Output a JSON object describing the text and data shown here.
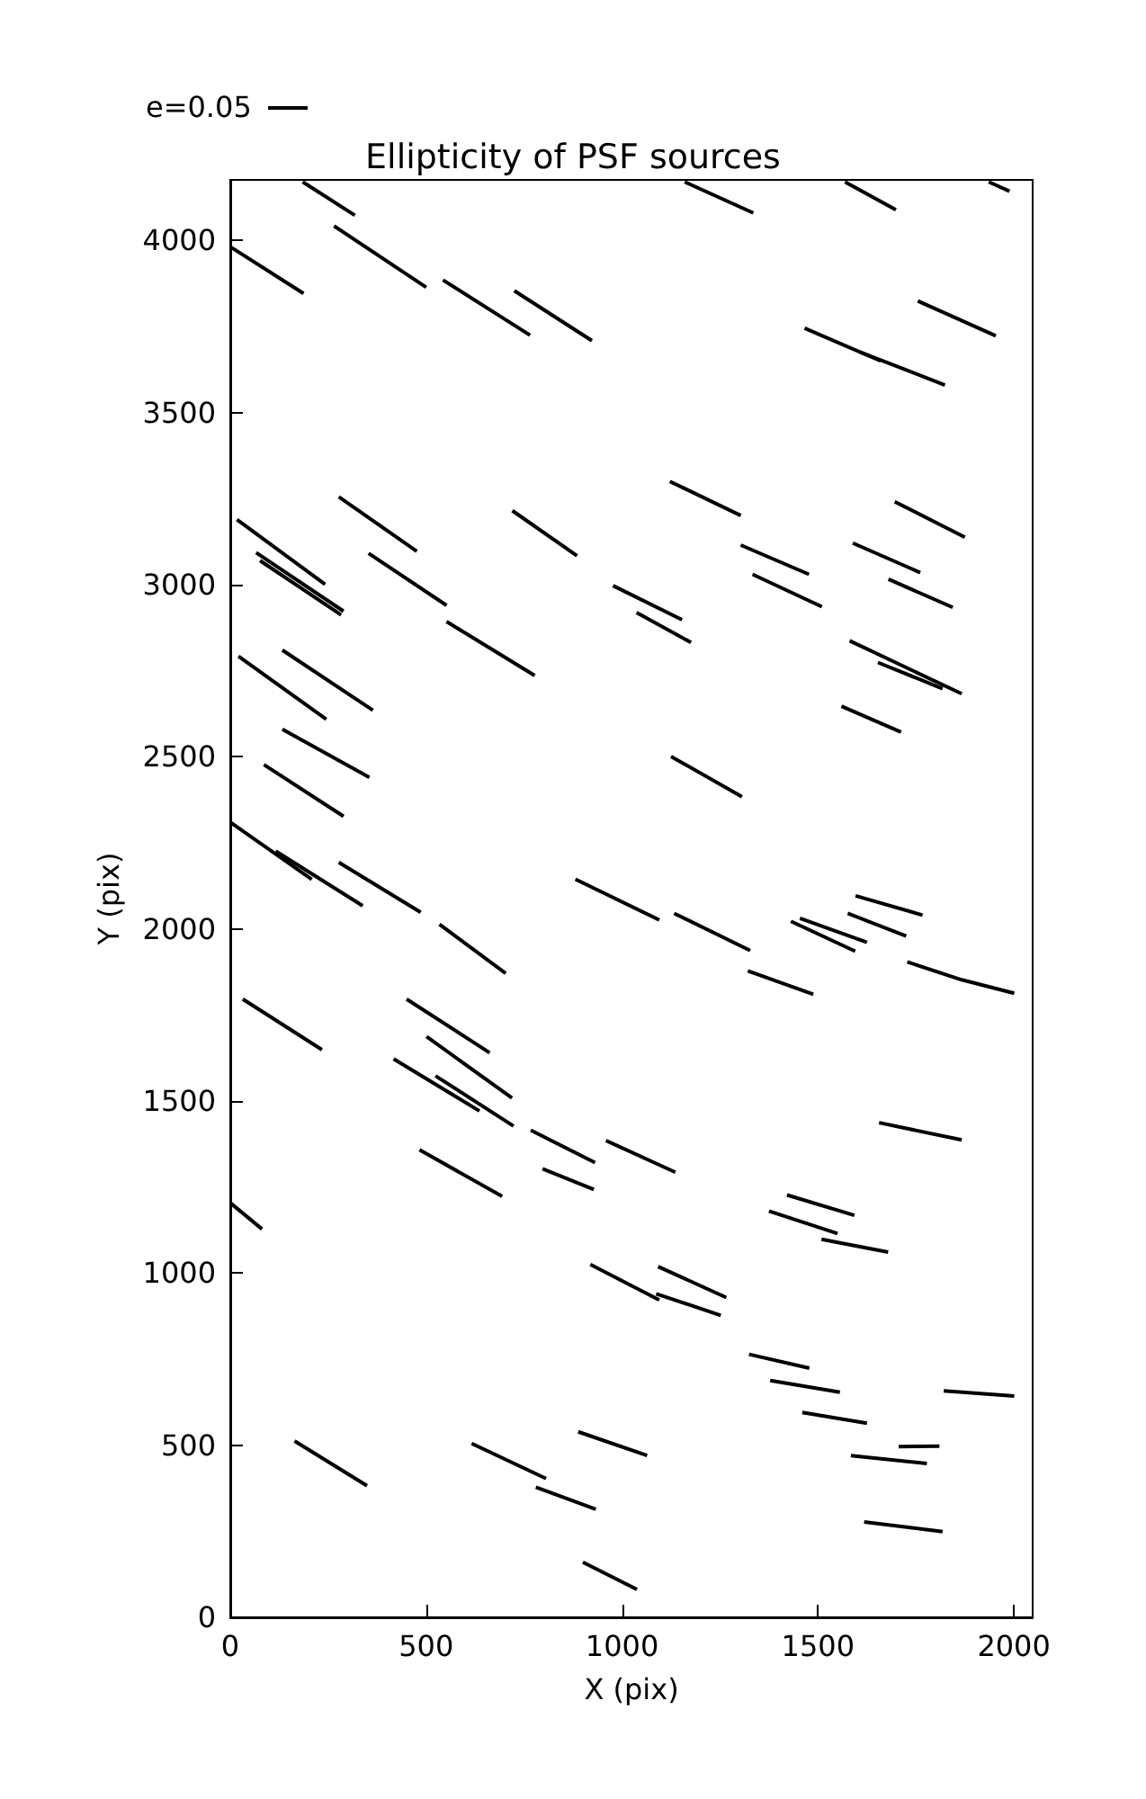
{
  "chart_data": {
    "type": "line",
    "title": "Ellipticity of PSF sources",
    "xlabel": "X (pix)",
    "ylabel": "Y (pix)",
    "annotations": [
      "e=0.05"
    ],
    "xlim": [
      0,
      2048
    ],
    "ylim": [
      0,
      4176
    ],
    "xticks": [
      0,
      500,
      1000,
      1500,
      2000
    ],
    "yticks": [
      0,
      500,
      1000,
      1500,
      2000,
      2500,
      3000,
      3500,
      4000
    ],
    "grid": false,
    "marker": "none",
    "line_style": "solid",
    "series": [
      {
        "color": "#000000",
        "x": [
          185,
          318
        ],
        "values": [
          4170,
          4073
        ]
      },
      {
        "color": "#000000",
        "x": [
          1160,
          1335
        ],
        "values": [
          4170,
          4080
        ]
      },
      {
        "color": "#000000",
        "x": [
          1569,
          1699
        ],
        "values": [
          4170,
          4089
        ]
      },
      {
        "color": "#000000",
        "x": [
          1936,
          1989
        ],
        "values": [
          4170,
          4143
        ]
      },
      {
        "color": "#000000",
        "x": [
          1,
          187
        ],
        "values": [
          3981,
          3846
        ]
      },
      {
        "color": "#000000",
        "x": [
          265,
          500
        ],
        "values": [
          4042,
          3864
        ]
      },
      {
        "color": "#000000",
        "x": [
          543,
          765
        ],
        "values": [
          3885,
          3725
        ]
      },
      {
        "color": "#000000",
        "x": [
          725,
          923
        ],
        "values": [
          3854,
          3709
        ]
      },
      {
        "color": "#000000",
        "x": [
          1755,
          1954
        ],
        "values": [
          3824,
          3723
        ]
      },
      {
        "color": "#000000",
        "x": [
          1466,
          1660
        ],
        "values": [
          3745,
          3650
        ]
      },
      {
        "color": "#000000",
        "x": [
          1607,
          1824
        ],
        "values": [
          3676,
          3580
        ]
      },
      {
        "color": "#000000",
        "x": [
          17,
          242
        ],
        "values": [
          3189,
          3001
        ]
      },
      {
        "color": "#000000",
        "x": [
          66,
          289
        ],
        "values": [
          3093,
          2923
        ]
      },
      {
        "color": "#000000",
        "x": [
          76,
          283
        ],
        "values": [
          3070,
          2912
        ]
      },
      {
        "color": "#000000",
        "x": [
          277,
          476
        ],
        "values": [
          3255,
          3097
        ]
      },
      {
        "color": "#000000",
        "x": [
          353,
          552
        ],
        "values": [
          3091,
          2940
        ]
      },
      {
        "color": "#000000",
        "x": [
          552,
          777
        ],
        "values": [
          2893,
          2736
        ]
      },
      {
        "color": "#000000",
        "x": [
          720,
          885
        ],
        "values": [
          3215,
          3084
        ]
      },
      {
        "color": "#000000",
        "x": [
          977,
          1153
        ],
        "values": [
          2997,
          2898
        ]
      },
      {
        "color": "#000000",
        "x": [
          1037,
          1176
        ],
        "values": [
          2919,
          2832
        ]
      },
      {
        "color": "#000000",
        "x": [
          1122,
          1303
        ],
        "values": [
          3300,
          3201
        ]
      },
      {
        "color": "#000000",
        "x": [
          1303,
          1477
        ],
        "values": [
          3115,
          3030
        ]
      },
      {
        "color": "#000000",
        "x": [
          1333,
          1510
        ],
        "values": [
          3030,
          2936
        ]
      },
      {
        "color": "#000000",
        "x": [
          1589,
          1761
        ],
        "values": [
          3121,
          3035
        ]
      },
      {
        "color": "#000000",
        "x": [
          1696,
          1875
        ],
        "values": [
          3241,
          3138
        ]
      },
      {
        "color": "#000000",
        "x": [
          1680,
          1844
        ],
        "values": [
          3016,
          2934
        ]
      },
      {
        "color": "#000000",
        "x": [
          1581,
          1867
        ],
        "values": [
          2837,
          2683
        ]
      },
      {
        "color": "#000000",
        "x": [
          1653,
          1818
        ],
        "values": [
          2774,
          2698
        ]
      },
      {
        "color": "#000000",
        "x": [
          1560,
          1712
        ],
        "values": [
          2647,
          2572
        ]
      },
      {
        "color": "#000000",
        "x": [
          21,
          245
        ],
        "values": [
          2792,
          2609
        ]
      },
      {
        "color": "#000000",
        "x": [
          133,
          364
        ],
        "values": [
          2810,
          2635
        ]
      },
      {
        "color": "#000000",
        "x": [
          133,
          355
        ],
        "values": [
          2580,
          2440
        ]
      },
      {
        "color": "#000000",
        "x": [
          86,
          289
        ],
        "values": [
          2477,
          2327
        ]
      },
      {
        "color": "#000000",
        "x": [
          1125,
          1306
        ],
        "values": [
          2501,
          2384
        ]
      },
      {
        "color": "#000000",
        "x": [
          1,
          208
        ],
        "values": [
          2309,
          2144
        ]
      },
      {
        "color": "#000000",
        "x": [
          116,
          338
        ],
        "values": [
          2226,
          2067
        ]
      },
      {
        "color": "#000000",
        "x": [
          277,
          486
        ],
        "values": [
          2193,
          2048
        ]
      },
      {
        "color": "#000000",
        "x": [
          881,
          1095
        ],
        "values": [
          2144,
          2026
        ]
      },
      {
        "color": "#000000",
        "x": [
          1133,
          1327
        ],
        "values": [
          2045,
          1937
        ]
      },
      {
        "color": "#000000",
        "x": [
          1596,
          1767
        ],
        "values": [
          2096,
          2040
        ]
      },
      {
        "color": "#000000",
        "x": [
          1576,
          1725
        ],
        "values": [
          2045,
          1979
        ]
      },
      {
        "color": "#000000",
        "x": [
          1431,
          1595
        ],
        "values": [
          2022,
          1935
        ]
      },
      {
        "color": "#000000",
        "x": [
          1454,
          1625
        ],
        "values": [
          2031,
          1961
        ]
      },
      {
        "color": "#000000",
        "x": [
          534,
          703
        ],
        "values": [
          2013,
          1871
        ]
      },
      {
        "color": "#000000",
        "x": [
          1321,
          1488
        ],
        "values": [
          1878,
          1810
        ]
      },
      {
        "color": "#000000",
        "x": [
          1728,
          1867,
          2001
        ],
        "values": [
          1904,
          1852,
          1813
        ]
      },
      {
        "color": "#000000",
        "x": [
          32,
          234
        ],
        "values": [
          1796,
          1649
        ]
      },
      {
        "color": "#000000",
        "x": [
          450,
          662
        ],
        "values": [
          1796,
          1640
        ]
      },
      {
        "color": "#000000",
        "x": [
          501,
          719
        ],
        "values": [
          1687,
          1509
        ]
      },
      {
        "color": "#000000",
        "x": [
          417,
          636
        ],
        "values": [
          1622,
          1471
        ]
      },
      {
        "color": "#000000",
        "x": [
          524,
          723
        ],
        "values": [
          1573,
          1427
        ]
      },
      {
        "color": "#000000",
        "x": [
          767,
          931
        ],
        "values": [
          1415,
          1321
        ]
      },
      {
        "color": "#000000",
        "x": [
          797,
          928
        ],
        "values": [
          1303,
          1243
        ]
      },
      {
        "color": "#000000",
        "x": [
          959,
          1136
        ],
        "values": [
          1385,
          1293
        ]
      },
      {
        "color": "#000000",
        "x": [
          483,
          694
        ],
        "values": [
          1358,
          1223
        ]
      },
      {
        "color": "#000000",
        "x": [
          1,
          81
        ],
        "values": [
          1203,
          1128
        ]
      },
      {
        "color": "#000000",
        "x": [
          1656,
          1867
        ],
        "values": [
          1437,
          1387
        ]
      },
      {
        "color": "#000000",
        "x": [
          1421,
          1593
        ],
        "values": [
          1227,
          1168
        ]
      },
      {
        "color": "#000000",
        "x": [
          1375,
          1550
        ],
        "values": [
          1180,
          1115
        ]
      },
      {
        "color": "#000000",
        "x": [
          1509,
          1679
        ],
        "values": [
          1098,
          1061
        ]
      },
      {
        "color": "#000000",
        "x": [
          919,
          1095
        ],
        "values": [
          1025,
          922
        ]
      },
      {
        "color": "#000000",
        "x": [
          1092,
          1266
        ],
        "values": [
          1019,
          929
        ]
      },
      {
        "color": "#000000",
        "x": [
          1087,
          1252
        ],
        "values": [
          940,
          877
        ]
      },
      {
        "color": "#000000",
        "x": [
          1324,
          1478
        ],
        "values": [
          764,
          724
        ]
      },
      {
        "color": "#000000",
        "x": [
          1378,
          1556
        ],
        "values": [
          688,
          654
        ]
      },
      {
        "color": "#000000",
        "x": [
          1460,
          1625
        ],
        "values": [
          595,
          564
        ]
      },
      {
        "color": "#000000",
        "x": [
          1821,
          2001
        ],
        "values": [
          658,
          643
        ]
      },
      {
        "color": "#000000",
        "x": [
          1584,
          1778
        ],
        "values": [
          470,
          447
        ]
      },
      {
        "color": "#000000",
        "x": [
          1706,
          1810
        ],
        "values": [
          496,
          497
        ]
      },
      {
        "color": "#000000",
        "x": [
          1618,
          1818
        ],
        "values": [
          277,
          249
        ]
      },
      {
        "color": "#000000",
        "x": [
          164,
          349
        ],
        "values": [
          512,
          382
        ]
      },
      {
        "color": "#000000",
        "x": [
          616,
          806
        ],
        "values": [
          505,
          403
        ]
      },
      {
        "color": "#000000",
        "x": [
          780,
          933
        ],
        "values": [
          378,
          314
        ]
      },
      {
        "color": "#000000",
        "x": [
          888,
          1064
        ],
        "values": [
          539,
          470
        ]
      },
      {
        "color": "#000000",
        "x": [
          900,
          1038
        ],
        "values": [
          160,
          81
        ]
      }
    ]
  }
}
